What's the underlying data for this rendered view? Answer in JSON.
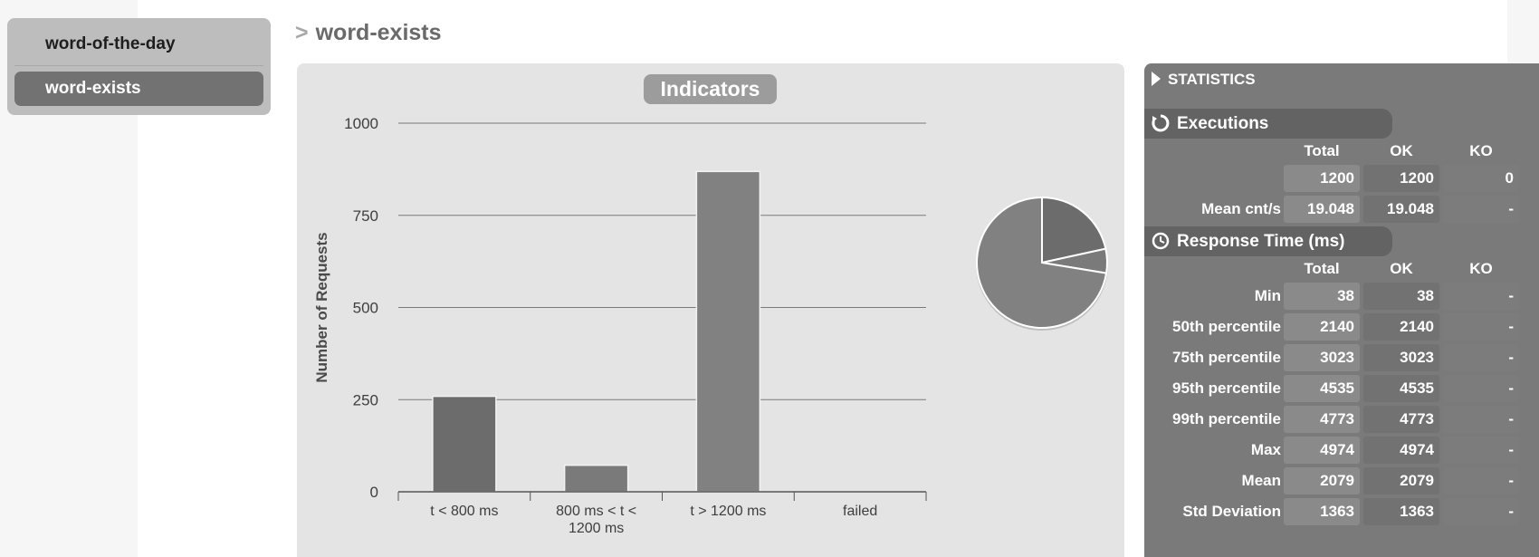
{
  "sidebar": {
    "items": [
      {
        "label": "word-of-the-day"
      },
      {
        "label": "word-exists"
      }
    ]
  },
  "page": {
    "title_prefix": ">",
    "title": "word-exists"
  },
  "indicators": {
    "title": "Indicators"
  },
  "chart_data": {
    "type": "bar",
    "ylabel": "Number of Requests",
    "xlabel": "",
    "ylim": [
      0,
      1000
    ],
    "yticks": [
      0,
      250,
      500,
      750,
      1000
    ],
    "grid": true,
    "categories": [
      "t < 800 ms",
      "800 ms < t < 1200 ms",
      "t > 1200 ms",
      "failed"
    ],
    "category_lines": [
      [
        "t < 800 ms"
      ],
      [
        "800 ms < t <",
        "1200 ms"
      ],
      [
        "t > 1200 ms"
      ],
      [
        "failed"
      ]
    ],
    "values": [
      259,
      72,
      869,
      0
    ],
    "bar_colors": [
      "#6c6c6c",
      "#7a7a7a",
      "#818181",
      "#8a8a8a"
    ],
    "pie": {
      "values": [
        259,
        72,
        869
      ],
      "colors": [
        "#6c6c6c",
        "#7a7a7a",
        "#818181"
      ]
    }
  },
  "stats": {
    "header": "STATISTICS",
    "columns": [
      "Total",
      "OK",
      "KO"
    ],
    "executions": {
      "title": "Executions",
      "rows": [
        {
          "label": "",
          "total": "1200",
          "ok": "1200",
          "ko": "0"
        },
        {
          "label": "Mean cnt/s",
          "total": "19.048",
          "ok": "19.048",
          "ko": "-"
        }
      ]
    },
    "response_time": {
      "title": "Response Time (ms)",
      "rows": [
        {
          "label": "Min",
          "total": "38",
          "ok": "38",
          "ko": "-"
        },
        {
          "label": "50th percentile",
          "total": "2140",
          "ok": "2140",
          "ko": "-"
        },
        {
          "label": "75th percentile",
          "total": "3023",
          "ok": "3023",
          "ko": "-"
        },
        {
          "label": "95th percentile",
          "total": "4535",
          "ok": "4535",
          "ko": "-"
        },
        {
          "label": "99th percentile",
          "total": "4773",
          "ok": "4773",
          "ko": "-"
        },
        {
          "label": "Max",
          "total": "4974",
          "ok": "4974",
          "ko": "-"
        },
        {
          "label": "Mean",
          "total": "2079",
          "ok": "2079",
          "ko": "-"
        },
        {
          "label": "Std Deviation",
          "total": "1363",
          "ok": "1363",
          "ko": "-"
        }
      ]
    }
  }
}
